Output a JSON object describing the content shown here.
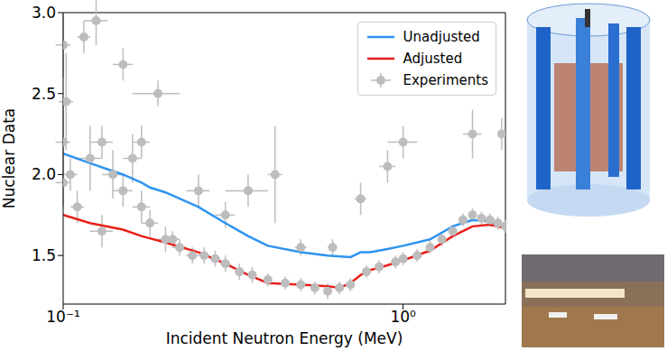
{
  "chart_data": {
    "type": "line",
    "x_label": "Incident Neutron Energy (MeV)",
    "y_label": "Nuclear Data",
    "log": "x",
    "xlim": [
      0.1,
      2.0
    ],
    "ylim": [
      1.2,
      3.0
    ],
    "xticks": [
      {
        "value": 0.1,
        "label": "10⁻¹"
      },
      {
        "value": 1,
        "label": "10⁰"
      }
    ],
    "yticks": [
      1.5,
      {
        "value": 2,
        "label": "2.0"
      },
      2.5,
      {
        "value": 3,
        "label": "3.0"
      }
    ],
    "legend": "upper right",
    "series": [
      {
        "name": "Unadjusted",
        "type": "line",
        "color": "#2e94f0",
        "x": [
          0.1,
          0.12,
          0.15,
          0.17,
          0.18,
          0.2,
          0.25,
          0.3,
          0.35,
          0.4,
          0.5,
          0.6,
          0.7,
          0.75,
          0.8,
          0.9,
          1.0,
          1.2,
          1.4,
          1.6,
          1.8,
          2.0
        ],
        "values": [
          2.13,
          2.07,
          2.0,
          1.95,
          1.92,
          1.89,
          1.8,
          1.7,
          1.62,
          1.56,
          1.52,
          1.5,
          1.49,
          1.52,
          1.52,
          1.54,
          1.56,
          1.6,
          1.68,
          1.72,
          1.71,
          1.67
        ]
      },
      {
        "name": "Adjusted",
        "type": "line",
        "color": "#e8201a",
        "x": [
          0.1,
          0.12,
          0.15,
          0.17,
          0.2,
          0.25,
          0.3,
          0.35,
          0.4,
          0.5,
          0.6,
          0.65,
          0.7,
          0.75,
          0.8,
          0.9,
          1.0,
          1.2,
          1.4,
          1.6,
          1.8,
          2.0
        ],
        "values": [
          1.75,
          1.7,
          1.66,
          1.62,
          1.58,
          1.52,
          1.45,
          1.38,
          1.33,
          1.32,
          1.31,
          1.3,
          1.33,
          1.38,
          1.41,
          1.44,
          1.47,
          1.53,
          1.62,
          1.68,
          1.69,
          1.67
        ]
      },
      {
        "name": "Experiments",
        "type": "scatter",
        "color": "#bdbdbd",
        "marker": "circle",
        "x": [
          0.1,
          0.1,
          0.1,
          0.102,
          0.105,
          0.11,
          0.115,
          0.12,
          0.125,
          0.13,
          0.13,
          0.14,
          0.15,
          0.15,
          0.16,
          0.17,
          0.17,
          0.18,
          0.19,
          0.2,
          0.21,
          0.22,
          0.24,
          0.25,
          0.26,
          0.28,
          0.3,
          0.3,
          0.33,
          0.35,
          0.36,
          0.4,
          0.42,
          0.45,
          0.5,
          0.5,
          0.55,
          0.6,
          0.62,
          0.65,
          0.7,
          0.75,
          0.78,
          0.85,
          0.9,
          0.95,
          1.0,
          1.0,
          1.1,
          1.2,
          1.3,
          1.4,
          1.5,
          1.6,
          1.6,
          1.7,
          1.8,
          1.9,
          2.0,
          1.95
        ],
        "values": [
          2.2,
          1.95,
          2.8,
          2.45,
          2.0,
          1.8,
          2.85,
          2.1,
          2.95,
          1.65,
          2.2,
          2.0,
          1.9,
          2.68,
          2.1,
          1.8,
          2.2,
          1.7,
          2.5,
          1.6,
          1.6,
          1.55,
          1.5,
          1.9,
          1.5,
          1.48,
          1.45,
          1.75,
          1.4,
          1.9,
          1.38,
          1.35,
          2.0,
          1.33,
          1.32,
          1.55,
          1.3,
          1.28,
          1.55,
          1.3,
          1.32,
          1.85,
          1.4,
          1.43,
          2.05,
          1.46,
          1.48,
          2.2,
          1.5,
          1.55,
          1.6,
          1.65,
          1.72,
          1.75,
          2.25,
          1.73,
          1.72,
          1.7,
          1.68,
          2.25
        ],
        "y_error": [
          0.25,
          0.15,
          0.2,
          0.3,
          0.1,
          0.1,
          0.1,
          0.2,
          0.15,
          0.1,
          0.1,
          0.15,
          0.1,
          0.1,
          0.15,
          0.1,
          0.1,
          0.08,
          0.08,
          0.08,
          0.05,
          0.05,
          0.05,
          0.1,
          0.05,
          0.05,
          0.05,
          0.08,
          0.05,
          0.1,
          0.05,
          0.04,
          0.3,
          0.04,
          0.04,
          0.05,
          0.04,
          0.05,
          0.05,
          0.04,
          0.04,
          0.1,
          0.04,
          0.04,
          0.1,
          0.04,
          0.04,
          0.1,
          0.04,
          0.04,
          0.04,
          0.04,
          0.04,
          0.04,
          0.15,
          0.04,
          0.04,
          0.04,
          0.04,
          0.1
        ],
        "x_error": [
          0.005,
          0.005,
          0.005,
          0.005,
          0.005,
          0.005,
          0.005,
          0.01,
          0.01,
          0.01,
          0.01,
          0.01,
          0.01,
          0.01,
          0.01,
          0.01,
          0.01,
          0.01,
          0.03,
          0.01,
          0.01,
          0.01,
          0.01,
          0.02,
          0.01,
          0.01,
          0.01,
          0.02,
          0.01,
          0.05,
          0.01,
          0.01,
          0.02,
          0.01,
          0.01,
          0.02,
          0.01,
          0.01,
          0.02,
          0.01,
          0.01,
          0.03,
          0.01,
          0.01,
          0.05,
          0.01,
          0.01,
          0.1,
          0.01,
          0.01,
          0.01,
          0.01,
          0.01,
          0.01,
          0.1,
          0.01,
          0.01,
          0.01,
          0.01,
          0.04
        ]
      }
    ]
  }
}
